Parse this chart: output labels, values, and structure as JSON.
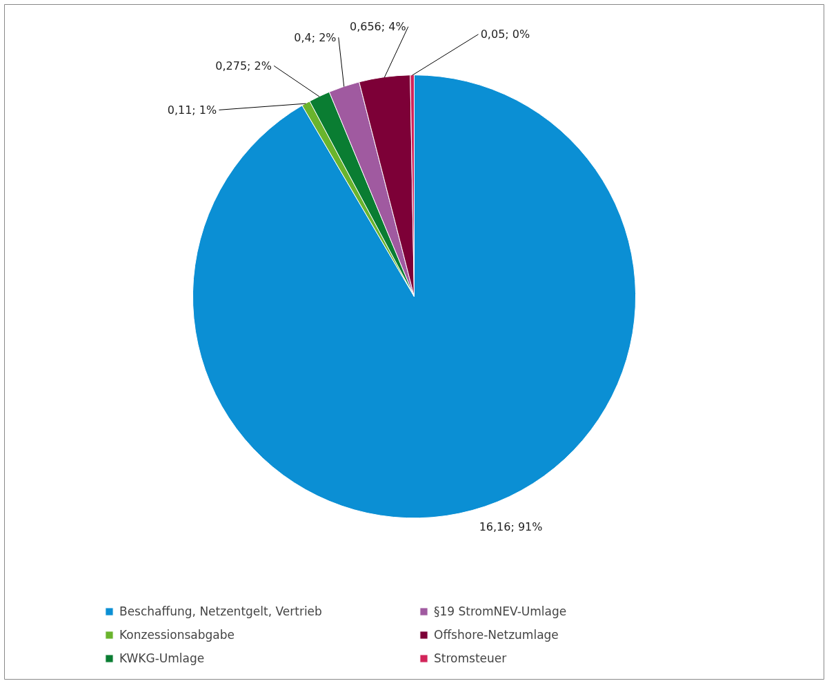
{
  "chart_data": {
    "type": "pie",
    "categories": [
      "Beschaffung, Netzentgelt, Vertrieb",
      "Konzessionsabgabe",
      "KWKG-Umlage",
      "§19 StromNEV-Umlage",
      "Offshore-Netzumlage",
      "Stromsteuer"
    ],
    "values": [
      16.16,
      0.11,
      0.275,
      0.4,
      0.656,
      0.05
    ],
    "colors": [
      "#0b8fd4",
      "#6ab42d",
      "#0a7d32",
      "#a05aa0",
      "#7d0037",
      "#d2245a"
    ],
    "value_labels": [
      "16,16; 91%",
      "0,11; 1%",
      "0,275; 2%",
      "0,4; 2%",
      "0,656; 4%",
      "0,05; 0%"
    ],
    "legend": "bottom"
  }
}
